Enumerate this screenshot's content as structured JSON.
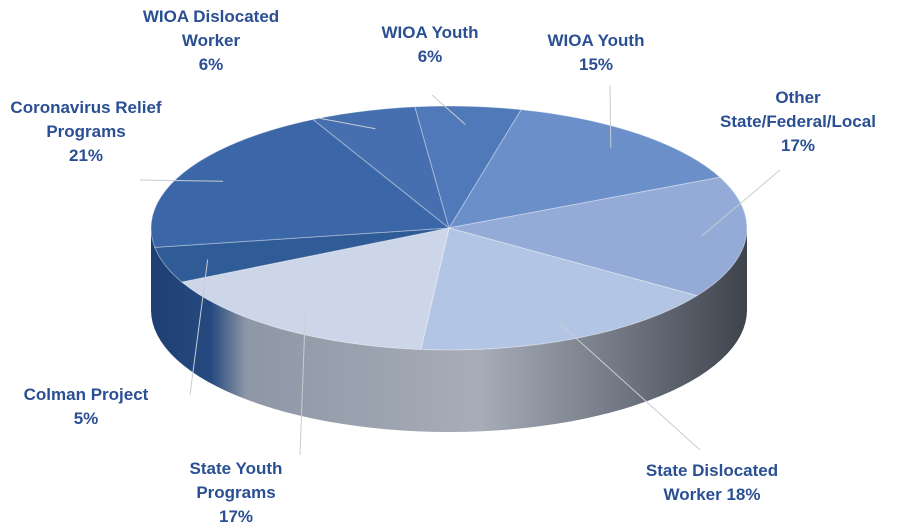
{
  "chart_data": {
    "type": "pie",
    "title": "",
    "three_d": true,
    "labels_outside": true,
    "slices": [
      {
        "label_lines": [
          "WIOA Youth",
          "15%"
        ],
        "label": "WIOA Youth",
        "value": 15,
        "color": "#6b8fc8"
      },
      {
        "label_lines": [
          "Other",
          "State/Federal/Local",
          "17%"
        ],
        "label": "Other State/Federal/Local",
        "value": 17,
        "color": "#93abd6"
      },
      {
        "label_lines": [
          "State Dislocated",
          "Worker 18%"
        ],
        "label": "State Dislocated Worker",
        "value": 18,
        "color": "#b3c5e4"
      },
      {
        "label_lines": [
          "State Youth",
          "Programs",
          "17%"
        ],
        "label": "State Youth Programs",
        "value": 17,
        "color": "#cdd6e8"
      },
      {
        "label_lines": [
          "Colman Project",
          "5%"
        ],
        "label": "Colman Project",
        "value": 5,
        "color": "#2f5b96"
      },
      {
        "label_lines": [
          "Coronavirus Relief",
          "Programs",
          "21%"
        ],
        "label": "Coronavirus Relief Programs",
        "value": 21,
        "color": "#3b67a8"
      },
      {
        "label_lines": [
          "WIOA Dislocated",
          "Worker",
          "6%"
        ],
        "label": "WIOA Dislocated Worker",
        "value": 6,
        "color": "#456fae"
      },
      {
        "label_lines": [
          "WIOA Youth",
          "6%"
        ],
        "label": "WIOA Youth",
        "value": 6,
        "color": "#4f79b8"
      }
    ]
  }
}
